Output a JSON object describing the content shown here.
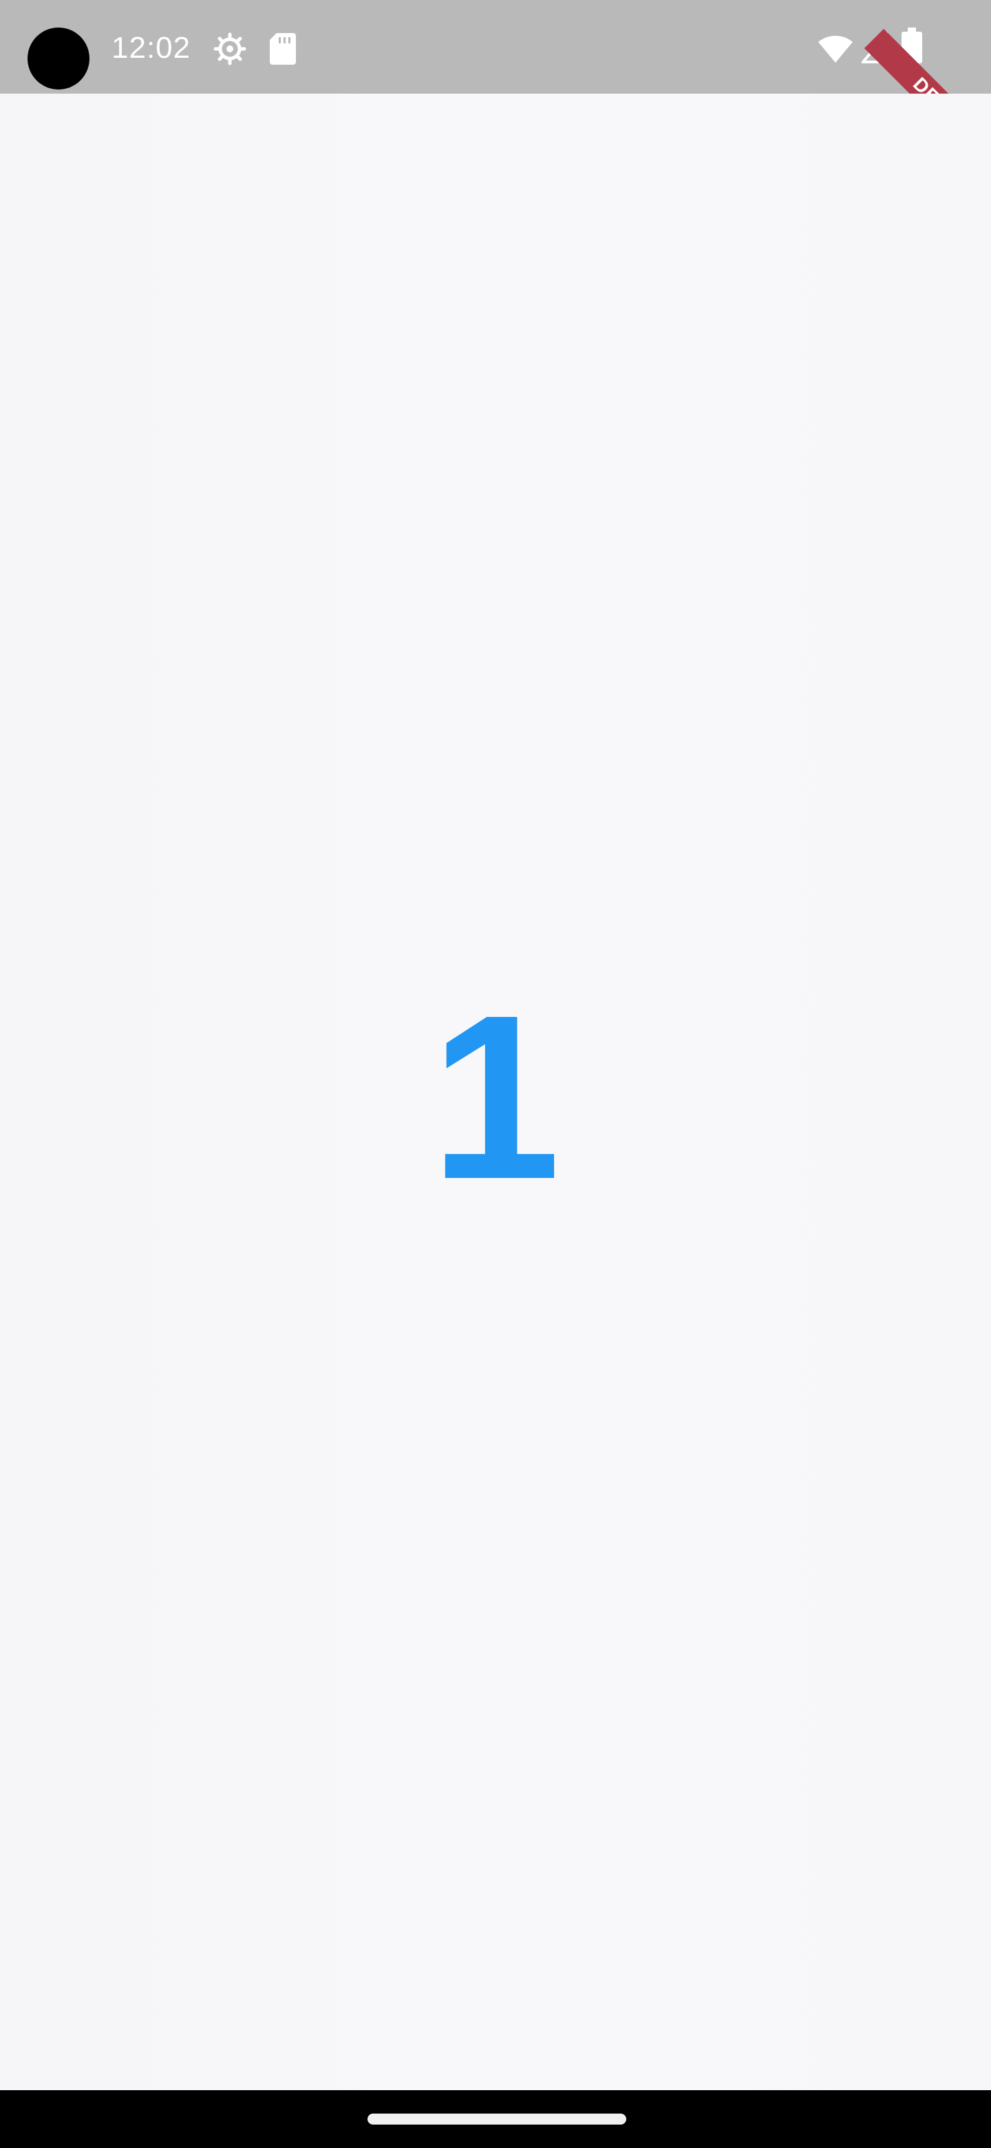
{
  "status_bar": {
    "time": "12:02",
    "icons": [
      "settings-icon",
      "sd-card-icon",
      "wifi-icon",
      "signal-icon",
      "battery-icon"
    ]
  },
  "debug_banner": {
    "label": "DEBUG"
  },
  "main": {
    "counter_value": "1"
  },
  "colors": {
    "accent": "#2196f3",
    "status_bar": "#b9b9b9",
    "background": "#f8f8fa",
    "debug_ribbon": "#b23a48",
    "nav_bar": "#000000"
  }
}
